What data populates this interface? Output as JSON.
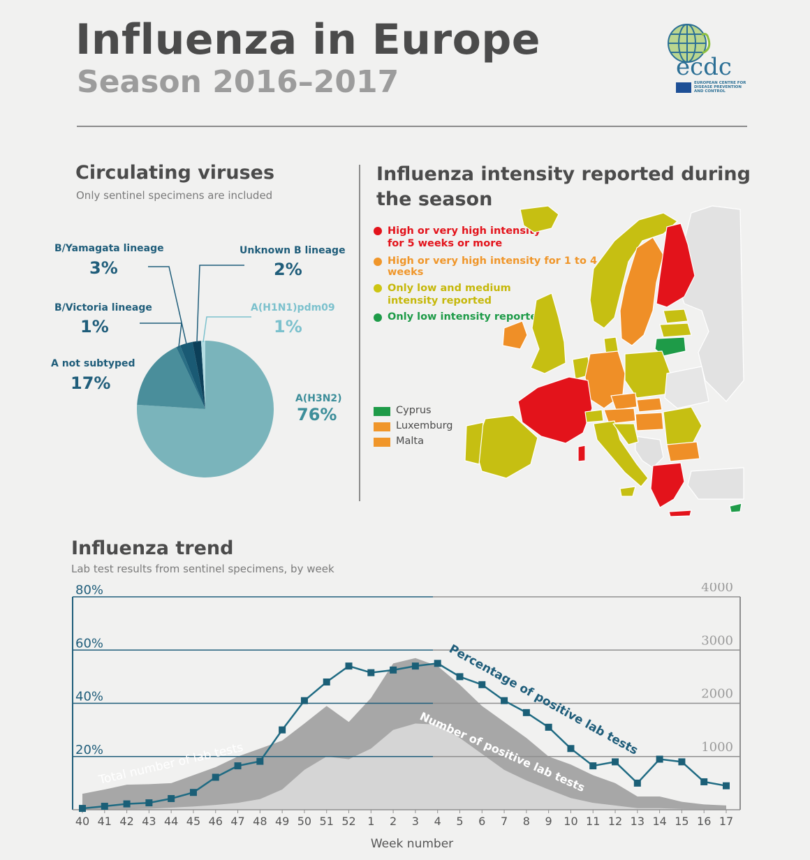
{
  "header": {
    "title": "Influenza in Europe",
    "subtitle": "Season 2016–2017",
    "logo": {
      "name": "ecdc",
      "caption_lines": [
        "EUROPEAN CENTRE FOR",
        "DISEASE PREVENTION",
        "AND CONTROL"
      ],
      "icon": "globe-icon"
    }
  },
  "viruses": {
    "title": "Circulating viruses",
    "subtitle": "Only sentinel specimens are included"
  },
  "intensity": {
    "title_line1": "Influenza intensity reported during",
    "title_line2": "the season",
    "legend": [
      {
        "label_lines": [
          "High or very high intensity",
          "for 5 weeks or more"
        ],
        "color": "#e3131b",
        "text_color": "#e3131b"
      },
      {
        "label_lines": [
          "High or very high intensity for 1 to 4 weeks"
        ],
        "color": "#f0962a",
        "text_color": "#f0962a"
      },
      {
        "label_lines": [
          "Only low and medium",
          "intensity reported"
        ],
        "color": "#cdc512",
        "text_color": "#c6b80a"
      },
      {
        "label_lines": [
          "Only low intensity reported"
        ],
        "color": "#1e9b48",
        "text_color": "#1e9b48"
      }
    ],
    "small_countries": [
      {
        "name": "Cyprus",
        "color": "#1e9b48"
      },
      {
        "name": "Luxemburg",
        "color": "#f0962a"
      },
      {
        "name": "Malta",
        "color": "#f0962a"
      }
    ]
  },
  "trend": {
    "title": "Influenza trend",
    "subtitle": "Lab test results from sentinel specimens, by week",
    "series_labels": {
      "percentage": "Percentage of positive lab tests",
      "positive": "Number of positive lab tests",
      "total": "Total number of lab tests"
    },
    "xlabel": "Week number"
  },
  "colors": {
    "dark_teal": "#1f5d7a",
    "line_teal": "#1f6b83",
    "total_gray": "#a7a7a7",
    "positive_gray": "#d5d5d5"
  },
  "chart_data": [
    {
      "type": "pie",
      "title": "Circulating viruses",
      "slices": [
        {
          "label": "A(H3N2)",
          "value": 76,
          "display": "76%",
          "color": "#7ab4bb"
        },
        {
          "label": "A not subtyped",
          "value": 17,
          "display": "17%",
          "color": "#4a8e9b"
        },
        {
          "label": "B/Victoria lineage",
          "value": 1,
          "display": "1%",
          "color": "#2a6f85"
        },
        {
          "label": "B/Yamagata lineage",
          "value": 3,
          "display": "3%",
          "color": "#1a5a74"
        },
        {
          "label": "Unknown B lineage",
          "value": 2,
          "display": "2%",
          "color": "#0c3f58"
        },
        {
          "label": "A(H1N1)pdm09",
          "value": 1,
          "display": "1%",
          "color": "#b4dde3"
        }
      ]
    },
    {
      "type": "line",
      "title": "Influenza trend",
      "xlabel": "Week number",
      "categories": [
        "40",
        "41",
        "42",
        "43",
        "44",
        "45",
        "46",
        "47",
        "48",
        "49",
        "50",
        "51",
        "52",
        "1",
        "2",
        "3",
        "4",
        "5",
        "6",
        "7",
        "8",
        "9",
        "10",
        "11",
        "12",
        "13",
        "14",
        "15",
        "16",
        "17"
      ],
      "y_left": {
        "ticks": [
          "20%",
          "40%",
          "60%",
          "80%"
        ],
        "range": [
          0,
          80
        ]
      },
      "y_right": {
        "ticks": [
          "1000",
          "2000",
          "3000",
          "4000"
        ],
        "range": [
          0,
          4000
        ]
      },
      "series": [
        {
          "name": "Percentage of positive lab tests",
          "axis": "left",
          "type": "line",
          "values": [
            0.5,
            1.3,
            2.2,
            2.6,
            4.2,
            6.5,
            12.2,
            16.5,
            18.2,
            30,
            41,
            48,
            54,
            51.5,
            52.5,
            54,
            55,
            50,
            47,
            41,
            36.5,
            31,
            23,
            16.5,
            18,
            10,
            19,
            18,
            10.5,
            9
          ]
        },
        {
          "name": "Total number of lab tests",
          "axis": "right",
          "type": "area",
          "values": [
            300,
            380,
            470,
            480,
            500,
            650,
            800,
            1000,
            1150,
            1300,
            1620,
            1950,
            1650,
            2100,
            2750,
            2850,
            2700,
            2350,
            1950,
            1650,
            1350,
            1000,
            850,
            650,
            500,
            250,
            250,
            150,
            100,
            80
          ]
        },
        {
          "name": "Number of positive lab tests",
          "axis": "right",
          "type": "area",
          "values": [
            0,
            5,
            10,
            20,
            40,
            60,
            90,
            130,
            200,
            380,
            750,
            1000,
            950,
            1150,
            1500,
            1620,
            1600,
            1350,
            1050,
            750,
            550,
            380,
            220,
            130,
            80,
            30,
            30,
            15,
            10,
            5
          ]
        }
      ]
    }
  ]
}
